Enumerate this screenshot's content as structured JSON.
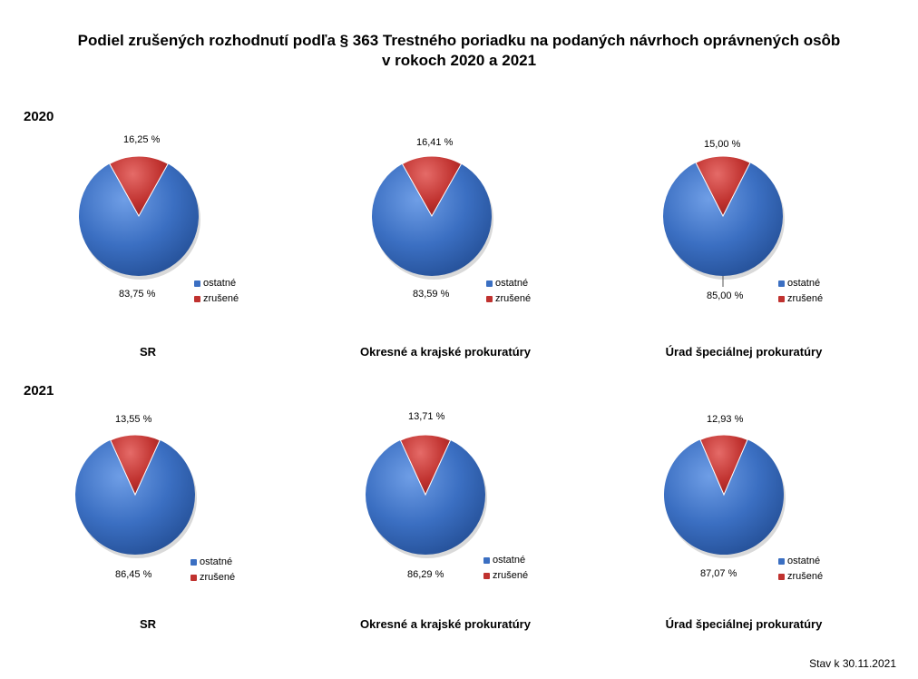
{
  "title_line1": "Podiel zrušených rozhodnutí podľa § 363 Trestného poriadku na podaných návrhoch oprávnených osôb",
  "title_line2": "v rokoch 2020 a 2021",
  "footer": "Stav k 30.11.2021",
  "colors": {
    "ostatne": "#3b6fc2",
    "zrusene": "#c0322f"
  },
  "legend_labels": [
    "ostatné",
    "zrušené"
  ],
  "chart_data": [
    {
      "type": "pie",
      "year": "2020",
      "title": "SR",
      "categories": [
        "ostatné",
        "zrušené"
      ],
      "values": [
        83.75,
        16.25
      ],
      "labels": [
        "83,75  %",
        "16,25  %"
      ]
    },
    {
      "type": "pie",
      "year": "2020",
      "title": "Okresné a krajské prokuratúry",
      "categories": [
        "ostatné",
        "zrušené"
      ],
      "values": [
        83.59,
        16.41
      ],
      "labels": [
        "83,59 %",
        "16,41 %"
      ]
    },
    {
      "type": "pie",
      "year": "2020",
      "title": "Úrad špeciálnej prokuratúry",
      "categories": [
        "ostatné",
        "zrušené"
      ],
      "values": [
        85.0,
        15.0
      ],
      "labels": [
        "85,00 %",
        "15,00 %"
      ]
    },
    {
      "type": "pie",
      "year": "2021",
      "title": "SR",
      "categories": [
        "ostatné",
        "zrušené"
      ],
      "values": [
        86.45,
        13.55
      ],
      "labels": [
        "86,45  %",
        "13,55  %"
      ]
    },
    {
      "type": "pie",
      "year": "2021",
      "title": "Okresné a krajské prokuratúry",
      "categories": [
        "ostatné",
        "zrušené"
      ],
      "values": [
        86.29,
        13.71
      ],
      "labels": [
        "86,29  %",
        "13,71  %"
      ]
    },
    {
      "type": "pie",
      "year": "2021",
      "title": "Úrad špeciálnej prokuratúry",
      "categories": [
        "ostatné",
        "zrušené"
      ],
      "values": [
        87.07,
        12.93
      ],
      "labels": [
        "87,07  %",
        "12,93 %"
      ]
    }
  ]
}
